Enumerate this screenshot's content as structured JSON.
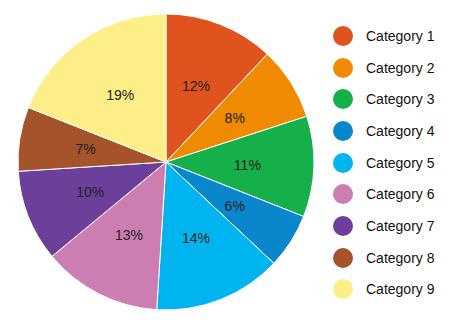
{
  "chart_data": {
    "type": "pie",
    "categories": [
      "Category 1",
      "Category 2",
      "Category 3",
      "Category 4",
      "Category 5",
      "Category 6",
      "Category 7",
      "Category 8",
      "Category 9"
    ],
    "values": [
      12,
      8,
      11,
      6,
      14,
      13,
      10,
      7,
      19
    ],
    "value_labels": [
      "12%",
      "8%",
      "11%",
      "6%",
      "14%",
      "13%",
      "10%",
      "7%",
      "19%"
    ],
    "colors": [
      "#e0531f",
      "#f08a00",
      "#16b04a",
      "#0a86cc",
      "#00b5ef",
      "#cc7db2",
      "#6b3f9a",
      "#a5532b",
      "#fdee88"
    ],
    "data_labels": true,
    "legend": "right"
  }
}
